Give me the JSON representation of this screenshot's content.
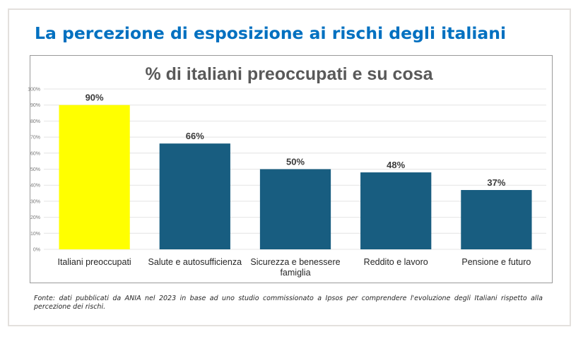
{
  "slide": {
    "title": "La percezione di esposizione ai rischi degli italiani",
    "source_note": "Fonte: dati pubblicati da ANIA nel 2023 in base ad uno studio commissionato a Ipsos per comprendere l'evoluzione degli Italiani rispetto alla percezione dei rischi."
  },
  "colors": {
    "title": "#0070c0",
    "highlight_bar": "#ffff00",
    "bar": "#185d80",
    "gridline": "#e4e4e4"
  },
  "chart_data": {
    "type": "bar",
    "title": "% di italiani preoccupati e su cosa",
    "xlabel": "",
    "ylabel": "",
    "ylim": [
      0,
      100
    ],
    "yticks": [
      0,
      10,
      20,
      30,
      40,
      50,
      60,
      70,
      80,
      90,
      100
    ],
    "ytick_labels": [
      "0%",
      "10%",
      "20%",
      "30%",
      "40%",
      "50%",
      "60%",
      "70%",
      "80%",
      "90%",
      "100%"
    ],
    "grid": true,
    "legend": "none",
    "categories": [
      [
        "Italiani preoccupati"
      ],
      [
        "Salute e autosufficienza"
      ],
      [
        "Sicurezza e benessere",
        "famiglia"
      ],
      [
        "Reddito e lavoro"
      ],
      [
        "Pensione e futuro"
      ]
    ],
    "values": [
      90,
      66,
      50,
      48,
      37
    ],
    "data_labels": [
      "90%",
      "66%",
      "50%",
      "48%",
      "37%"
    ],
    "highlighted": [
      true,
      false,
      false,
      false,
      false
    ]
  }
}
